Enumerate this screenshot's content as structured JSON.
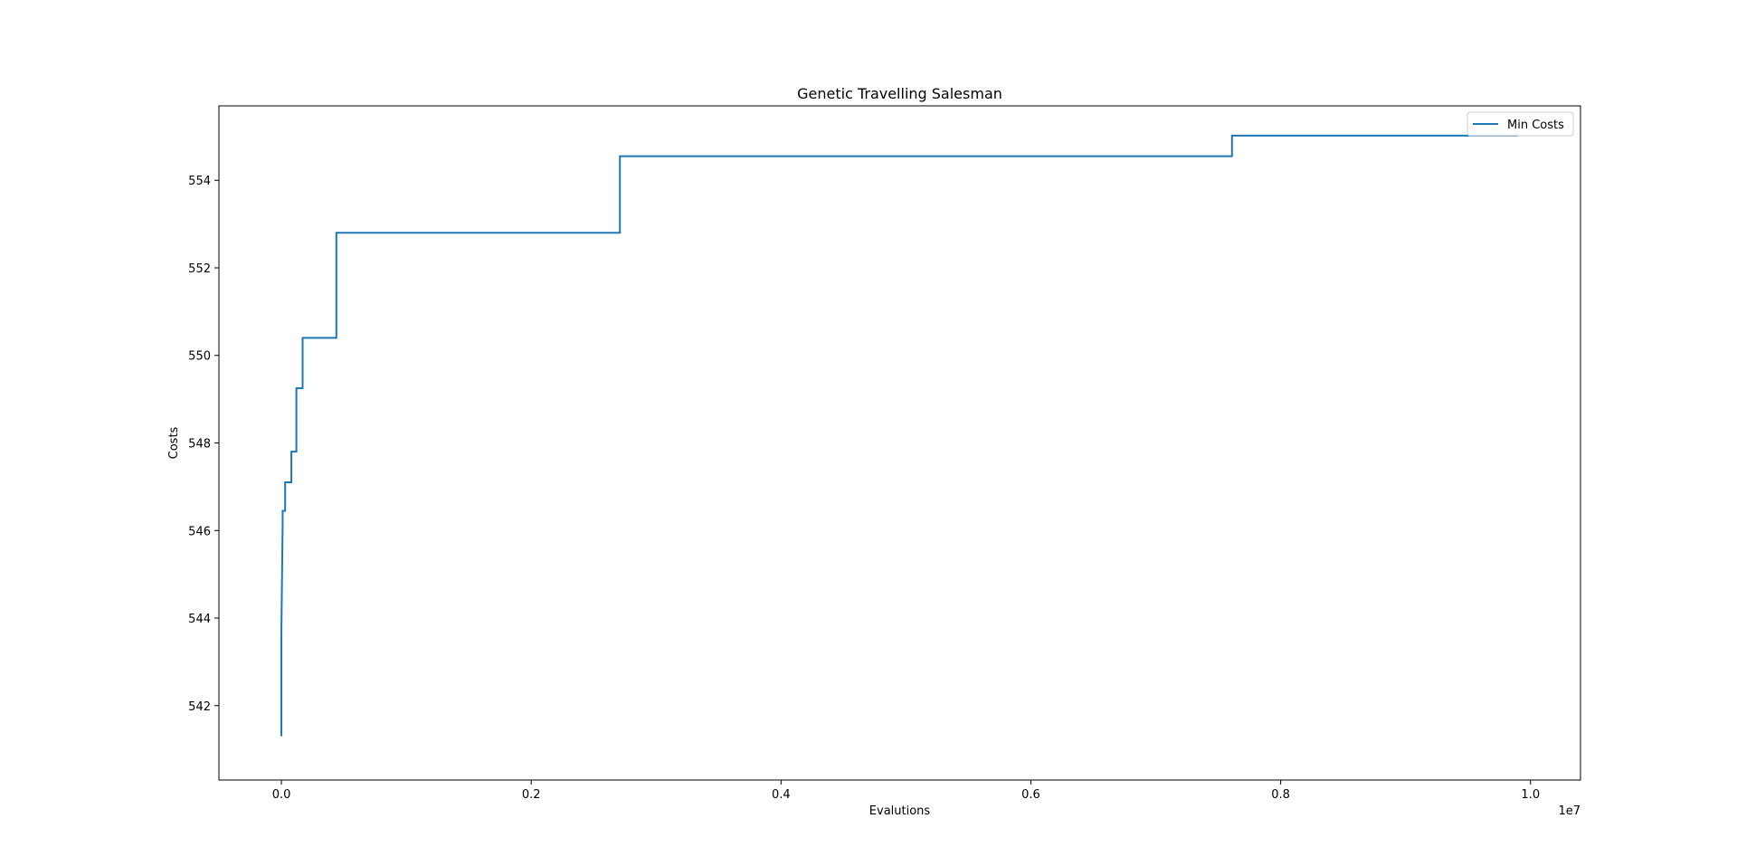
{
  "chart_data": {
    "type": "line",
    "title": "Genetic Travelling Salesman",
    "xlabel": "Evalutions",
    "ylabel": "Costs",
    "x_offset_label": "1e7",
    "xlim": [
      -0.05,
      1.04
    ],
    "ylim": [
      540.3,
      555.7
    ],
    "x_ticks": [
      0.0,
      0.2,
      0.4,
      0.6,
      0.8,
      1.0
    ],
    "x_tick_labels": [
      "0.0",
      "0.2",
      "0.4",
      "0.6",
      "0.8",
      "1.0"
    ],
    "y_ticks": [
      542,
      544,
      546,
      548,
      550,
      552,
      554
    ],
    "y_tick_labels": [
      "542",
      "544",
      "546",
      "548",
      "550",
      "552",
      "554"
    ],
    "grid": false,
    "legend_position": "top-right",
    "series": [
      {
        "name": "Min Costs",
        "color": "#1f77b4",
        "step": "post",
        "x": [
          0.0,
          0.0,
          0.001,
          0.001,
          0.003,
          0.003,
          0.008,
          0.008,
          0.012,
          0.012,
          0.017,
          0.017,
          0.044,
          0.044,
          0.271,
          0.271,
          0.761,
          0.761,
          0.99
        ],
        "y": [
          541.3,
          543.7,
          546.15,
          546.45,
          546.45,
          547.1,
          547.1,
          547.8,
          547.8,
          549.25,
          549.25,
          550.4,
          550.4,
          552.8,
          552.8,
          554.55,
          554.55,
          555.02,
          555.02
        ]
      }
    ]
  }
}
